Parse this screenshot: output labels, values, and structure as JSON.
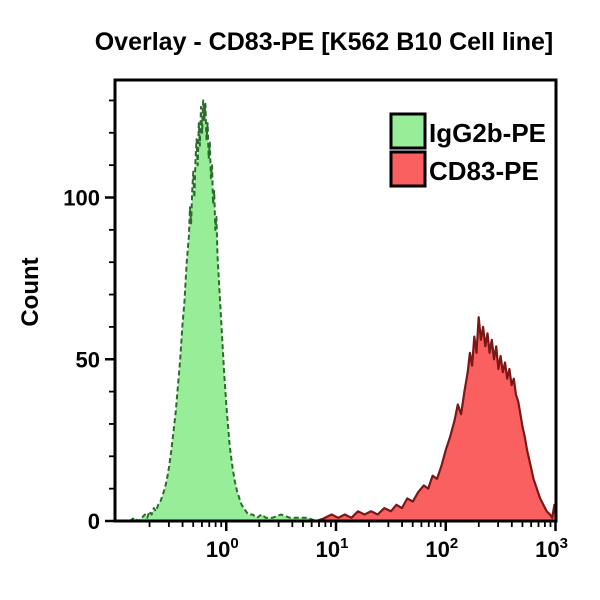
{
  "title": "Overlay - CD83-PE [K562 B10 Cell line]",
  "chart_data": {
    "type": "area",
    "subtype": "flow-cytometry-histogram-overlay",
    "title": "Overlay - CD83-PE [K562 B10 Cell line]",
    "xlabel": "",
    "ylabel": "Count",
    "x_scale": "log10",
    "x_range_log": [
      -1,
      3
    ],
    "ylim": [
      0,
      136
    ],
    "grid": false,
    "y_axis": {
      "major_ticks": [
        {
          "value": 0,
          "label": "0"
        },
        {
          "value": 50,
          "label": "50"
        },
        {
          "value": 100,
          "label": "100"
        }
      ],
      "minor_tick_values": [
        10,
        20,
        30,
        40,
        60,
        70,
        80,
        90,
        110,
        120,
        130
      ]
    },
    "x_axis": {
      "major_ticks": [
        {
          "log": 0,
          "base": "10",
          "exp": "0"
        },
        {
          "log": 1,
          "base": "10",
          "exp": "1"
        },
        {
          "log": 2,
          "base": "10",
          "exp": "2"
        },
        {
          "log": 3,
          "base": "10",
          "exp": "3"
        }
      ]
    },
    "legend": {
      "position": "top-right-inside",
      "items": [
        {
          "label": "IgG2b-PE",
          "fill": "#98EE98",
          "outline": "#000000"
        },
        {
          "label": "CD83-PE",
          "fill": "#FA6060",
          "outline": "#000000"
        }
      ]
    },
    "series": [
      {
        "name": "IgG2b-PE",
        "fill": "#98EE98",
        "outline": "#2D6A2D",
        "outline_style": "dashed",
        "peak": {
          "x_log": -0.21,
          "x_value": 0.62,
          "count": 130
        },
        "points": [
          [
            -0.88,
            0
          ],
          [
            -0.84,
            1
          ],
          [
            -0.8,
            0
          ],
          [
            -0.77,
            1
          ],
          [
            -0.74,
            2
          ],
          [
            -0.72,
            1
          ],
          [
            -0.7,
            3
          ],
          [
            -0.68,
            2
          ],
          [
            -0.66,
            4
          ],
          [
            -0.64,
            3
          ],
          [
            -0.62,
            5
          ],
          [
            -0.6,
            6
          ],
          [
            -0.58,
            8
          ],
          [
            -0.56,
            10
          ],
          [
            -0.54,
            13
          ],
          [
            -0.52,
            17
          ],
          [
            -0.5,
            22
          ],
          [
            -0.48,
            28
          ],
          [
            -0.46,
            34
          ],
          [
            -0.44,
            42
          ],
          [
            -0.42,
            50
          ],
          [
            -0.4,
            60
          ],
          [
            -0.38,
            68
          ],
          [
            -0.36,
            80
          ],
          [
            -0.34,
            88
          ],
          [
            -0.33,
            97
          ],
          [
            -0.32,
            92
          ],
          [
            -0.31,
            102
          ],
          [
            -0.3,
            108
          ],
          [
            -0.29,
            100
          ],
          [
            -0.28,
            112
          ],
          [
            -0.27,
            118
          ],
          [
            -0.26,
            110
          ],
          [
            -0.25,
            123
          ],
          [
            -0.24,
            116
          ],
          [
            -0.23,
            128
          ],
          [
            -0.22,
            120
          ],
          [
            -0.21,
            130
          ],
          [
            -0.2,
            124
          ],
          [
            -0.19,
            129
          ],
          [
            -0.18,
            118
          ],
          [
            -0.17,
            123
          ],
          [
            -0.16,
            112
          ],
          [
            -0.15,
            117
          ],
          [
            -0.14,
            106
          ],
          [
            -0.13,
            110
          ],
          [
            -0.12,
            98
          ],
          [
            -0.11,
            102
          ],
          [
            -0.1,
            90
          ],
          [
            -0.09,
            94
          ],
          [
            -0.08,
            82
          ],
          [
            -0.07,
            76
          ],
          [
            -0.06,
            70
          ],
          [
            -0.05,
            64
          ],
          [
            -0.04,
            58
          ],
          [
            -0.03,
            52
          ],
          [
            -0.02,
            46
          ],
          [
            -0.01,
            41
          ],
          [
            0.0,
            36
          ],
          [
            0.01,
            32
          ],
          [
            0.02,
            28
          ],
          [
            0.03,
            24
          ],
          [
            0.04,
            21
          ],
          [
            0.06,
            16
          ],
          [
            0.08,
            12
          ],
          [
            0.1,
            9
          ],
          [
            0.12,
            7
          ],
          [
            0.14,
            5
          ],
          [
            0.16,
            4
          ],
          [
            0.18,
            3
          ],
          [
            0.2,
            2
          ],
          [
            0.24,
            2
          ],
          [
            0.28,
            1
          ],
          [
            0.32,
            2
          ],
          [
            0.36,
            1
          ],
          [
            0.42,
            1
          ],
          [
            0.5,
            2
          ],
          [
            0.58,
            1
          ],
          [
            0.66,
            1
          ],
          [
            0.74,
            1
          ],
          [
            0.82,
            0
          ],
          [
            0.9,
            1
          ],
          [
            1.0,
            0
          ]
        ]
      },
      {
        "name": "CD83-PE",
        "fill": "#FA6060",
        "outline": "#7A1818",
        "outline_style": "solid",
        "peak": {
          "x_log": 2.3,
          "x_value": 200,
          "count": 63
        },
        "points": [
          [
            0.84,
            0
          ],
          [
            0.9,
            1
          ],
          [
            0.96,
            2
          ],
          [
            1.02,
            1
          ],
          [
            1.08,
            2
          ],
          [
            1.14,
            1
          ],
          [
            1.2,
            3
          ],
          [
            1.26,
            2
          ],
          [
            1.32,
            3
          ],
          [
            1.38,
            2
          ],
          [
            1.44,
            4
          ],
          [
            1.5,
            3
          ],
          [
            1.55,
            5
          ],
          [
            1.6,
            4
          ],
          [
            1.65,
            7
          ],
          [
            1.7,
            6
          ],
          [
            1.75,
            9
          ],
          [
            1.8,
            11
          ],
          [
            1.84,
            10
          ],
          [
            1.88,
            14
          ],
          [
            1.92,
            13
          ],
          [
            1.96,
            17
          ],
          [
            2.0,
            22
          ],
          [
            2.04,
            26
          ],
          [
            2.08,
            31
          ],
          [
            2.11,
            36
          ],
          [
            2.14,
            33
          ],
          [
            2.17,
            40
          ],
          [
            2.2,
            46
          ],
          [
            2.22,
            52
          ],
          [
            2.24,
            48
          ],
          [
            2.26,
            57
          ],
          [
            2.28,
            52
          ],
          [
            2.3,
            63
          ],
          [
            2.32,
            56
          ],
          [
            2.34,
            60
          ],
          [
            2.36,
            54
          ],
          [
            2.38,
            58
          ],
          [
            2.4,
            52
          ],
          [
            2.42,
            56
          ],
          [
            2.44,
            50
          ],
          [
            2.46,
            54
          ],
          [
            2.48,
            47
          ],
          [
            2.5,
            51
          ],
          [
            2.52,
            46
          ],
          [
            2.54,
            49
          ],
          [
            2.56,
            44
          ],
          [
            2.58,
            47
          ],
          [
            2.6,
            42
          ],
          [
            2.62,
            44
          ],
          [
            2.64,
            39
          ],
          [
            2.66,
            37
          ],
          [
            2.68,
            33
          ],
          [
            2.7,
            29
          ],
          [
            2.72,
            26
          ],
          [
            2.74,
            22
          ],
          [
            2.76,
            19
          ],
          [
            2.78,
            16
          ],
          [
            2.8,
            13
          ],
          [
            2.83,
            10
          ],
          [
            2.86,
            7
          ],
          [
            2.89,
            5
          ],
          [
            2.92,
            3
          ],
          [
            2.95,
            2
          ],
          [
            2.97,
            1
          ],
          [
            2.99,
            5
          ],
          [
            3.0,
            2
          ]
        ]
      }
    ]
  }
}
